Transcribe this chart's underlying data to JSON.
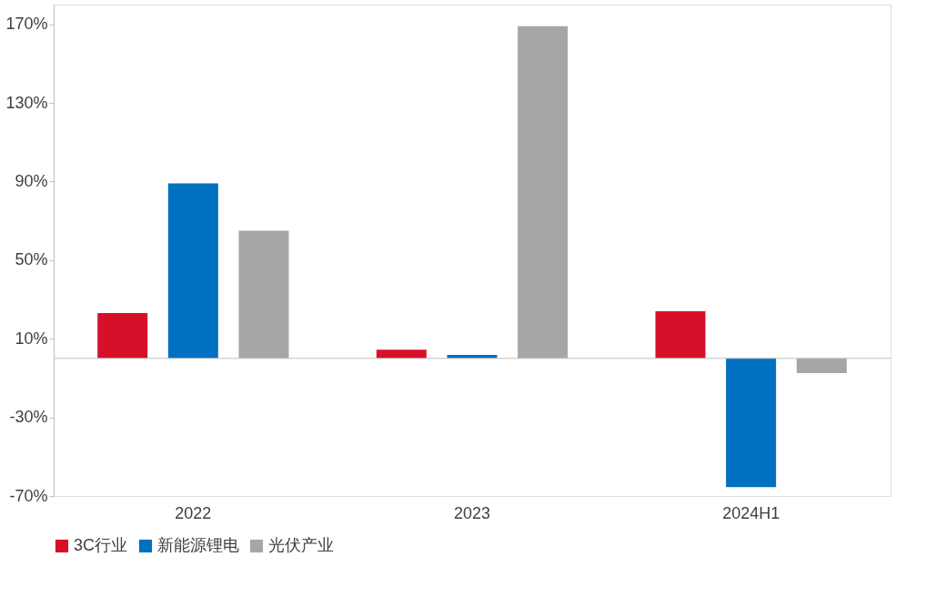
{
  "chart_data": {
    "type": "bar",
    "categories": [
      "2022",
      "2023",
      "2024H1"
    ],
    "series": [
      {
        "name": "3C行业",
        "color": "#d7102a",
        "values": [
          23,
          4.4,
          24
        ]
      },
      {
        "name": "新能源锂电",
        "color": "#0070c0",
        "values": [
          89,
          1.8,
          -65.5
        ]
      },
      {
        "name": "光伏产业",
        "color": "#a6a6a6",
        "values": [
          65,
          169,
          -7.5
        ]
      }
    ],
    "ylim": [
      -70,
      180
    ],
    "yticks": [
      {
        "value": -70,
        "label": "-70%"
      },
      {
        "value": -30,
        "label": "-30%"
      },
      {
        "value": 10,
        "label": "10%"
      },
      {
        "value": 50,
        "label": "50%"
      },
      {
        "value": 90,
        "label": "90%"
      },
      {
        "value": 130,
        "label": "130%"
      },
      {
        "value": 170,
        "label": "170%"
      }
    ],
    "grid": false,
    "legend": "bottom"
  }
}
